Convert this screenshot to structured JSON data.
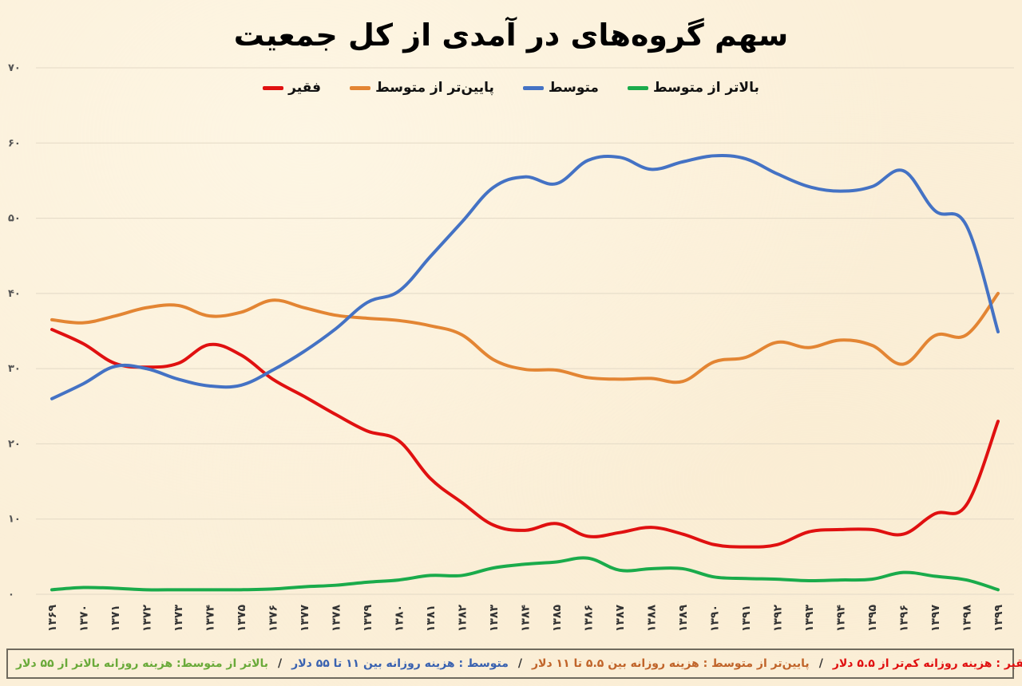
{
  "title": "سهم گروه‌های در آمدی از کل جمعیت",
  "legend": [
    {
      "label": "بالاتر از متوسط",
      "color": "#1aab4b"
    },
    {
      "label": "متوسط",
      "color": "#4472c4"
    },
    {
      "label": "پایین‌تر از متوسط",
      "color": "#e38533"
    },
    {
      "label": "فقیر",
      "color": "#e01010"
    }
  ],
  "footer": {
    "poor": "فقیر : هزینه روزانه کم‌تر از ۵.۵ دلار",
    "lower_middle": "پایین‌تر از متوسط : هزینه روزانه بین ۵.۵ تا ۱۱ دلار",
    "middle": "متوسط : هزینه روزانه بین ۱۱ تا ۵۵ دلار",
    "upper_middle": "بالاتر از متوسط: هزینه روزانه بالاتر از ۵۵ دلار",
    "separator": "/"
  },
  "chart_data": {
    "type": "line",
    "title": "سهم گروه‌های در آمدی از کل جمعیت",
    "xlabel": "",
    "ylabel": "",
    "ylim": [
      0,
      70
    ],
    "yticks": [
      0,
      10,
      20,
      30,
      40,
      50,
      60,
      70
    ],
    "ytick_labels": [
      "۰",
      "۱۰",
      "۲۰",
      "۳۰",
      "۴۰",
      "۵۰",
      "۶۰",
      "۷۰"
    ],
    "grid": true,
    "legend_position": "top",
    "categories": [
      "۱۳۶۹",
      "۱۳۷۰",
      "۱۳۷۱",
      "۱۳۷۲",
      "۱۳۷۳",
      "۱۳۷۴",
      "۱۳۷۵",
      "۱۳۷۶",
      "۱۳۷۷",
      "۱۳۷۸",
      "۱۳۷۹",
      "۱۳۸۰",
      "۱۳۸۱",
      "۱۳۸۲",
      "۱۳۸۳",
      "۱۳۸۴",
      "۱۳۸۵",
      "۱۳۸۶",
      "۱۳۸۷",
      "۱۳۸۸",
      "۱۳۸۹",
      "۱۳۹۰",
      "۱۳۹۱",
      "۱۳۹۲",
      "۱۳۹۳",
      "۱۳۹۴",
      "۱۳۹۵",
      "۱۳۹۶",
      "۱۳۹۷",
      "۱۳۹۸",
      "۱۳۹۹"
    ],
    "x": [
      1369,
      1370,
      1371,
      1372,
      1373,
      1374,
      1375,
      1376,
      1377,
      1378,
      1379,
      1380,
      1381,
      1382,
      1383,
      1384,
      1385,
      1386,
      1387,
      1388,
      1389,
      1390,
      1391,
      1392,
      1393,
      1394,
      1395,
      1396,
      1397,
      1398,
      1399
    ],
    "series": [
      {
        "name": "فقیر",
        "color": "#e01010",
        "values": [
          35.2,
          33.3,
          30.7,
          30.2,
          30.7,
          33.2,
          31.8,
          28.6,
          26.3,
          23.9,
          21.7,
          20.4,
          15.4,
          12.2,
          9.2,
          8.5,
          9.4,
          7.7,
          8.2,
          8.9,
          8.0,
          6.6,
          6.3,
          6.6,
          8.3,
          8.6,
          8.6,
          8.0,
          10.7,
          11.9,
          23.0
        ]
      },
      {
        "name": "پایین‌تر از متوسط",
        "color": "#e38533",
        "values": [
          36.5,
          36.1,
          37.0,
          38.1,
          38.4,
          37.0,
          37.5,
          39.1,
          38.1,
          37.1,
          36.7,
          36.4,
          35.7,
          34.5,
          31.2,
          29.9,
          29.8,
          28.8,
          28.6,
          28.7,
          28.3,
          30.9,
          31.5,
          33.5,
          32.8,
          33.8,
          33.1,
          30.6,
          34.4,
          34.5,
          40.0
        ]
      },
      {
        "name": "متوسط",
        "color": "#4472c4",
        "values": [
          26.0,
          28.0,
          30.3,
          30.0,
          28.6,
          27.7,
          27.8,
          29.8,
          32.3,
          35.3,
          38.8,
          40.3,
          44.9,
          49.5,
          54.1,
          55.5,
          54.6,
          57.7,
          58.1,
          56.5,
          57.5,
          58.3,
          57.9,
          55.9,
          54.2,
          53.6,
          54.2,
          56.3,
          51.0,
          49.0,
          34.9
        ]
      },
      {
        "name": "بالاتر از متوسط",
        "color": "#1aab4b",
        "values": [
          0.6,
          0.9,
          0.8,
          0.6,
          0.6,
          0.6,
          0.6,
          0.7,
          1.0,
          1.2,
          1.6,
          1.9,
          2.5,
          2.5,
          3.5,
          4.0,
          4.3,
          4.8,
          3.2,
          3.4,
          3.4,
          2.3,
          2.1,
          2.0,
          1.8,
          1.9,
          2.0,
          2.9,
          2.4,
          1.9,
          0.6
        ]
      }
    ]
  }
}
